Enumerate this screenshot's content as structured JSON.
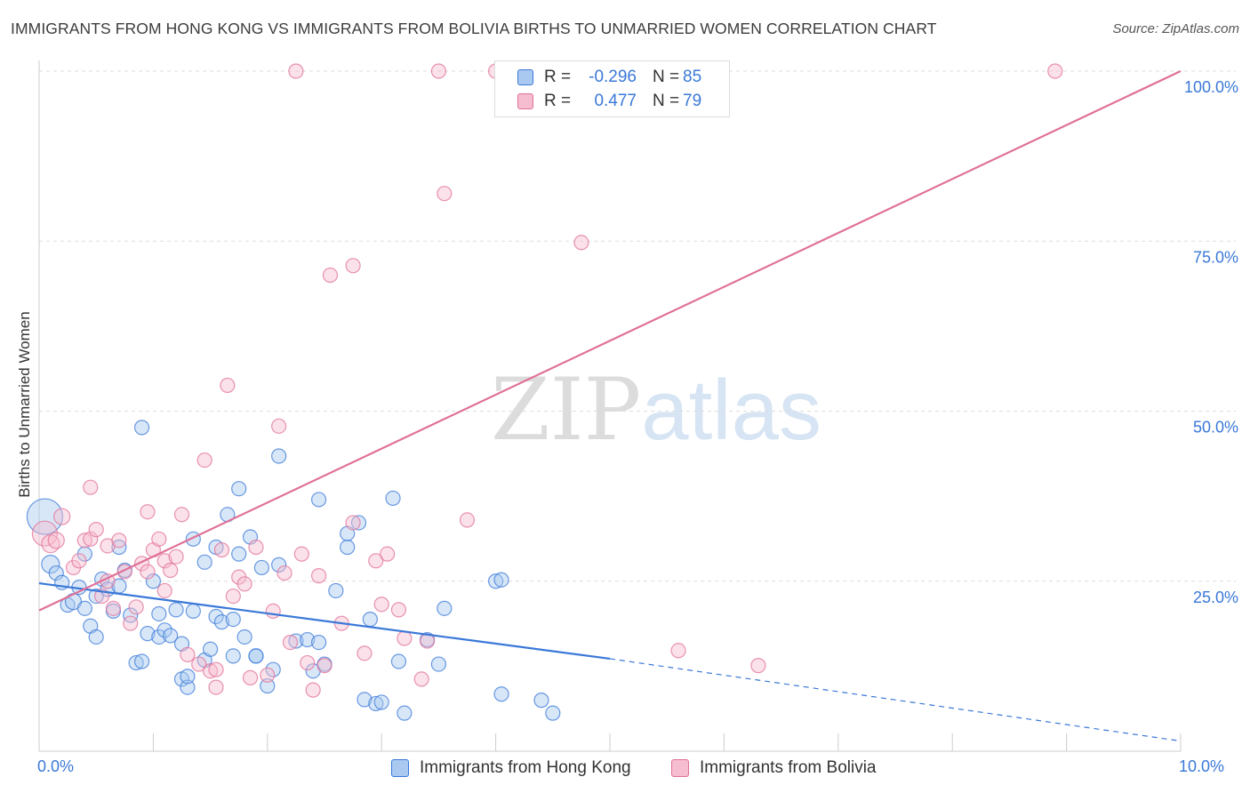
{
  "title": "IMMIGRANTS FROM HONG KONG VS IMMIGRANTS FROM BOLIVIA BIRTHS TO UNMARRIED WOMEN CORRELATION CHART",
  "source": "Source: ZipAtlas.com",
  "watermark": {
    "zip": "ZIP",
    "atlas": "atlas"
  },
  "legend": {
    "rows": [
      {
        "r_label": "R =",
        "r_value": "-0.296",
        "n_label": "N =",
        "n_value": "85"
      },
      {
        "r_label": "R =",
        "r_value": "0.477",
        "n_label": "N =",
        "n_value": "79"
      }
    ]
  },
  "bottom_legend": {
    "hong_kong": "Immigrants from Hong Kong",
    "bolivia": "Immigrants from Bolivia"
  },
  "x_tick_labels": {
    "left": "0.0%",
    "right": "10.0%"
  },
  "colors": {
    "blue": "#3a78d8",
    "blue_fill": "#a9c9f0",
    "pink": "#e07098",
    "pink_fill": "#f6bccf",
    "grid": "#dddddd",
    "tick_text": "#3a78d8"
  },
  "chart_data": {
    "type": "scatter",
    "title": "IMMIGRANTS FROM HONG KONG VS IMMIGRANTS FROM BOLIVIA BIRTHS TO UNMARRIED WOMEN CORRELATION CHART",
    "xlabel": "",
    "ylabel": "Births to Unmarried Women",
    "xlim": [
      0,
      10
    ],
    "ylim": [
      0,
      100
    ],
    "x_unit": "%",
    "y_ticks": [
      25,
      50,
      75,
      100
    ],
    "y_tick_labels": [
      "25.0%",
      "50.0%",
      "75.0%",
      "100.0%"
    ],
    "grid": "horizontal dashed",
    "legend_position": "top-center",
    "series": [
      {
        "name": "Immigrants from Hong Kong",
        "color": "#3a78d8",
        "fill": "#a9c9f0",
        "r": -0.296,
        "n": 85,
        "trend": {
          "x0": 0,
          "y0": 24.7,
          "x1": 5.0,
          "y1": 13.6,
          "dashed_to_x": 10,
          "dashed_to_y": 1.5
        },
        "points": [
          [
            0.05,
            34.5,
            20
          ],
          [
            0.1,
            27.5,
            10
          ],
          [
            0.15,
            26.2,
            8
          ],
          [
            0.2,
            24.8,
            8
          ],
          [
            0.25,
            21.5,
            8
          ],
          [
            0.3,
            22.0,
            9
          ],
          [
            0.35,
            24.1,
            8
          ],
          [
            0.4,
            21.0,
            8
          ],
          [
            0.4,
            29.0,
            8
          ],
          [
            0.45,
            18.4,
            8
          ],
          [
            0.5,
            22.8,
            8
          ],
          [
            0.55,
            25.3,
            8
          ],
          [
            0.5,
            16.8,
            8
          ],
          [
            0.6,
            23.8,
            8
          ],
          [
            0.65,
            20.6,
            8
          ],
          [
            0.7,
            24.3,
            8
          ],
          [
            0.7,
            30.0,
            8
          ],
          [
            0.75,
            26.6,
            8
          ],
          [
            0.8,
            20.0,
            8
          ],
          [
            0.85,
            13.0,
            8
          ],
          [
            0.9,
            13.2,
            8
          ],
          [
            0.9,
            47.6,
            8
          ],
          [
            0.95,
            17.3,
            8
          ],
          [
            1.0,
            25.0,
            8
          ],
          [
            1.05,
            20.2,
            8
          ],
          [
            1.05,
            16.8,
            8
          ],
          [
            1.1,
            17.8,
            8
          ],
          [
            1.15,
            17.0,
            8
          ],
          [
            1.2,
            20.8,
            8
          ],
          [
            1.25,
            15.8,
            8
          ],
          [
            1.25,
            10.6,
            8
          ],
          [
            1.3,
            9.4,
            8
          ],
          [
            1.3,
            11.0,
            8
          ],
          [
            1.35,
            20.6,
            8
          ],
          [
            1.35,
            31.2,
            8
          ],
          [
            1.45,
            13.4,
            8
          ],
          [
            1.45,
            27.8,
            8
          ],
          [
            1.5,
            15.0,
            8
          ],
          [
            1.55,
            30.0,
            8
          ],
          [
            1.55,
            19.8,
            8
          ],
          [
            1.6,
            19.0,
            8
          ],
          [
            1.65,
            34.8,
            8
          ],
          [
            1.7,
            19.4,
            8
          ],
          [
            1.7,
            14.0,
            8
          ],
          [
            1.75,
            29.0,
            8
          ],
          [
            1.75,
            38.6,
            8
          ],
          [
            1.8,
            16.8,
            8
          ],
          [
            1.85,
            31.5,
            8
          ],
          [
            1.9,
            14.0,
            8
          ],
          [
            1.9,
            14.0,
            8
          ],
          [
            1.95,
            27.0,
            8
          ],
          [
            2.0,
            9.6,
            8
          ],
          [
            2.05,
            12.0,
            8
          ],
          [
            2.1,
            27.4,
            8
          ],
          [
            2.1,
            43.4,
            8
          ],
          [
            2.25,
            16.2,
            8
          ],
          [
            2.35,
            16.4,
            8
          ],
          [
            2.4,
            11.8,
            8
          ],
          [
            2.45,
            16.0,
            8
          ],
          [
            2.45,
            37.0,
            8
          ],
          [
            2.5,
            12.8,
            8
          ],
          [
            2.6,
            23.6,
            8
          ],
          [
            2.7,
            30.0,
            8
          ],
          [
            2.7,
            32.0,
            8
          ],
          [
            2.8,
            33.6,
            8
          ],
          [
            2.85,
            7.6,
            8
          ],
          [
            2.9,
            19.4,
            8
          ],
          [
            2.95,
            7.0,
            8
          ],
          [
            3.0,
            7.2,
            8
          ],
          [
            3.1,
            37.2,
            8
          ],
          [
            3.15,
            13.2,
            8
          ],
          [
            3.2,
            5.6,
            8
          ],
          [
            3.4,
            16.4,
            8
          ],
          [
            3.5,
            12.8,
            8
          ],
          [
            3.55,
            21.0,
            8
          ],
          [
            4.0,
            25.0,
            8
          ],
          [
            4.05,
            25.2,
            8
          ],
          [
            4.05,
            8.4,
            8
          ],
          [
            4.4,
            7.5,
            8
          ],
          [
            4.5,
            5.6,
            8
          ]
        ]
      },
      {
        "name": "Immigrants from Bolivia",
        "color": "#e07098",
        "fill": "#f6bccf",
        "r": 0.477,
        "n": 79,
        "trend": {
          "x0": 0,
          "y0": 20.7,
          "x1": 10,
          "y1": 100.0
        },
        "points": [
          [
            0.05,
            32.0,
            14
          ],
          [
            0.1,
            30.5,
            10
          ],
          [
            0.15,
            31.0,
            9
          ],
          [
            0.2,
            34.5,
            9
          ],
          [
            0.3,
            27.0,
            8
          ],
          [
            0.35,
            28.0,
            8
          ],
          [
            0.4,
            31.0,
            8
          ],
          [
            0.45,
            31.2,
            8
          ],
          [
            0.45,
            38.8,
            8
          ],
          [
            0.5,
            32.6,
            8
          ],
          [
            0.55,
            22.8,
            8
          ],
          [
            0.6,
            30.2,
            8
          ],
          [
            0.6,
            25.0,
            8
          ],
          [
            0.65,
            21.0,
            8
          ],
          [
            0.7,
            31.0,
            8
          ],
          [
            0.75,
            26.4,
            8
          ],
          [
            0.8,
            18.8,
            8
          ],
          [
            0.85,
            21.2,
            8
          ],
          [
            0.9,
            27.6,
            8
          ],
          [
            0.95,
            35.2,
            8
          ],
          [
            0.95,
            26.4,
            8
          ],
          [
            1.0,
            29.6,
            8
          ],
          [
            1.05,
            31.2,
            8
          ],
          [
            1.1,
            28.0,
            8
          ],
          [
            1.1,
            23.6,
            8
          ],
          [
            1.15,
            26.6,
            8
          ],
          [
            1.2,
            28.6,
            8
          ],
          [
            1.25,
            34.8,
            8
          ],
          [
            1.3,
            14.2,
            8
          ],
          [
            1.4,
            12.8,
            8
          ],
          [
            1.45,
            42.8,
            8
          ],
          [
            1.5,
            11.8,
            8
          ],
          [
            1.55,
            9.4,
            8
          ],
          [
            1.55,
            12.0,
            8
          ],
          [
            1.6,
            29.6,
            8
          ],
          [
            1.65,
            53.8,
            8
          ],
          [
            1.7,
            22.8,
            8
          ],
          [
            1.75,
            25.6,
            8
          ],
          [
            1.8,
            24.6,
            8
          ],
          [
            1.85,
            10.8,
            8
          ],
          [
            1.9,
            30.0,
            8
          ],
          [
            2.0,
            11.2,
            8
          ],
          [
            2.05,
            20.6,
            8
          ],
          [
            2.1,
            47.8,
            8
          ],
          [
            2.15,
            26.2,
            8
          ],
          [
            2.2,
            16.0,
            8
          ],
          [
            2.25,
            100.0,
            8
          ],
          [
            2.3,
            29.0,
            8
          ],
          [
            2.35,
            13.0,
            8
          ],
          [
            2.4,
            9.0,
            8
          ],
          [
            2.45,
            25.8,
            8
          ],
          [
            2.5,
            12.6,
            8
          ],
          [
            2.55,
            70.0,
            8
          ],
          [
            2.65,
            18.8,
            8
          ],
          [
            2.75,
            71.4,
            8
          ],
          [
            2.75,
            33.6,
            8
          ],
          [
            2.85,
            14.4,
            8
          ],
          [
            2.95,
            28.0,
            8
          ],
          [
            3.0,
            21.6,
            8
          ],
          [
            3.05,
            29.0,
            8
          ],
          [
            3.15,
            20.8,
            8
          ],
          [
            3.2,
            16.6,
            8
          ],
          [
            3.35,
            10.6,
            8
          ],
          [
            3.4,
            16.2,
            8
          ],
          [
            3.5,
            100.0,
            8
          ],
          [
            3.55,
            82.0,
            8
          ],
          [
            3.75,
            34.0,
            8
          ],
          [
            4.0,
            100.0,
            8
          ],
          [
            4.2,
            100.0,
            8
          ],
          [
            4.6,
            100.0,
            8
          ],
          [
            4.75,
            74.8,
            8
          ],
          [
            5.2,
            100.0,
            8
          ],
          [
            5.6,
            14.8,
            8
          ],
          [
            6.3,
            12.6,
            8
          ],
          [
            8.9,
            100.0,
            8
          ]
        ]
      }
    ]
  }
}
